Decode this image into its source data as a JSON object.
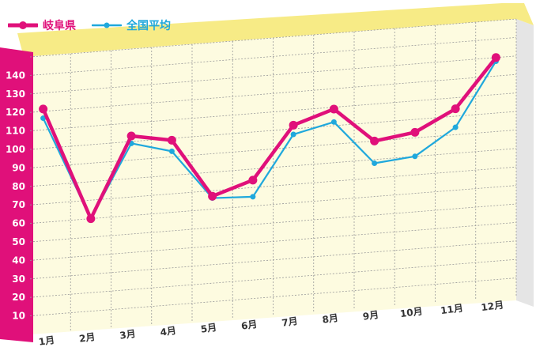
{
  "chart_data": {
    "type": "line",
    "categories": [
      "1月",
      "2月",
      "3月",
      "4月",
      "5月",
      "6月",
      "7月",
      "8月",
      "9月",
      "10月",
      "11月",
      "12月"
    ],
    "series": [
      {
        "name": "岐阜県",
        "color": "#e0107a",
        "values": [
          121,
          60,
          103,
          99,
          67,
          74,
          102,
          109,
          90,
          93,
          104,
          130
        ]
      },
      {
        "name": "全国平均",
        "color": "#1fa8dc",
        "values": [
          116,
          60,
          99,
          93,
          66,
          65,
          97,
          102,
          78,
          80,
          94,
          128
        ]
      }
    ],
    "y_ticks": [
      "10",
      "20",
      "30",
      "40",
      "50",
      "60",
      "70",
      "80",
      "90",
      "100",
      "110",
      "120",
      "130",
      "140"
    ],
    "ylim": [
      0,
      150
    ],
    "grid": true,
    "legend_placement": "top-left",
    "colors": {
      "plot_background": "#fdfbe0",
      "top_band": "#f7eb86",
      "side_band": "#e5e5e5",
      "y_axis_band": "#e0107a",
      "grid": "#9a9a9a"
    }
  }
}
